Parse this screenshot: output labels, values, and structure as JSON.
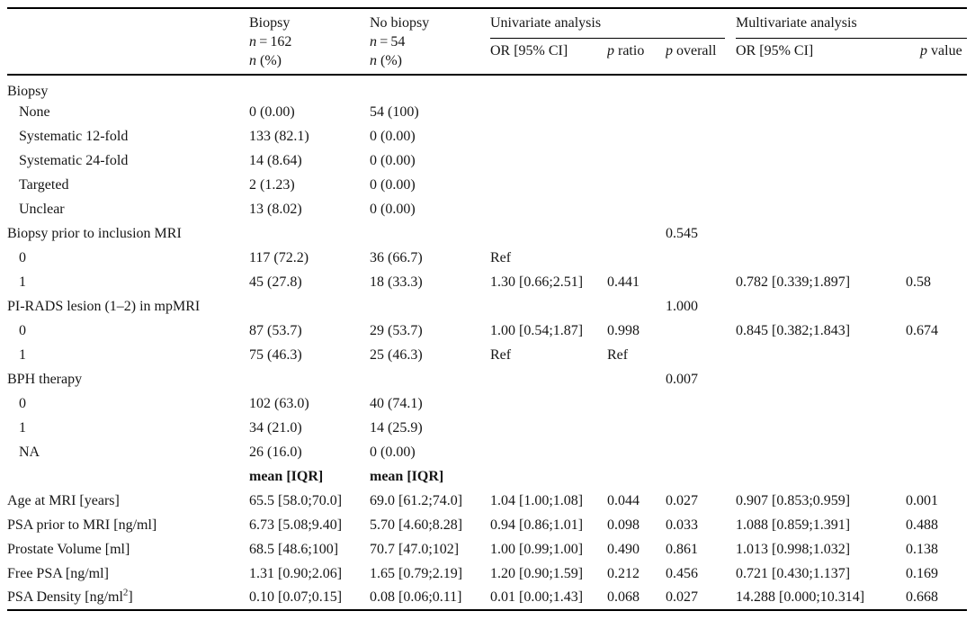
{
  "header": {
    "biopsy": {
      "title": "Biopsy",
      "n_sym": "n",
      "n_rest": " = 162",
      "unit_sym": "n",
      "unit_rest": " (%)"
    },
    "no_biopsy": {
      "title": "No biopsy",
      "n_sym": "n",
      "n_rest": " = 54",
      "unit_sym": "n",
      "unit_rest": " (%)"
    },
    "univariate_group": "Univariate analysis",
    "multivariate_group": "Multivariate analysis",
    "sub": {
      "or_univariate": "OR [95% CI]",
      "p_ratio": {
        "sym": "p",
        "rest": " ratio"
      },
      "p_overall": {
        "sym": "p",
        "rest": " overall"
      },
      "or_multivariate": "OR [95% CI]",
      "p_value": {
        "sym": "p",
        "rest": " value"
      }
    }
  },
  "columns": [
    "label",
    "biopsy",
    "no_biopsy",
    "or_univariate",
    "p_ratio",
    "p_overall",
    "or_multivariate",
    "p_value"
  ],
  "rows": [
    {
      "type": "section",
      "label": "Biopsy",
      "cells": [
        "",
        "",
        "",
        "",
        "",
        "",
        ""
      ]
    },
    {
      "type": "sub",
      "label": "None",
      "cells": [
        "0 (0.00)",
        "54 (100)",
        "",
        "",
        "",
        "",
        ""
      ]
    },
    {
      "type": "sub",
      "label": "Systematic 12-fold",
      "cells": [
        "133 (82.1)",
        "0 (0.00)",
        "",
        "",
        "",
        "",
        ""
      ]
    },
    {
      "type": "sub",
      "label": "Systematic 24-fold",
      "cells": [
        "14 (8.64)",
        "0 (0.00)",
        "",
        "",
        "",
        "",
        ""
      ]
    },
    {
      "type": "sub",
      "label": "Targeted",
      "cells": [
        "2 (1.23)",
        "0 (0.00)",
        "",
        "",
        "",
        "",
        ""
      ]
    },
    {
      "type": "sub",
      "label": "Unclear",
      "cells": [
        "13 (8.02)",
        "0 (0.00)",
        "",
        "",
        "",
        "",
        ""
      ]
    },
    {
      "type": "section",
      "label": "Biopsy prior to inclusion MRI",
      "cells": [
        "",
        "",
        "",
        "",
        "0.545",
        "",
        ""
      ]
    },
    {
      "type": "sub",
      "label": "0",
      "cells": [
        "117 (72.2)",
        "36 (66.7)",
        "Ref",
        "",
        "",
        "",
        ""
      ]
    },
    {
      "type": "sub",
      "label": "1",
      "cells": [
        "45 (27.8)",
        "18 (33.3)",
        "1.30 [0.66;2.51]",
        "0.441",
        "",
        "0.782 [0.339;1.897]",
        "0.58"
      ]
    },
    {
      "type": "section",
      "label": "PI-RADS lesion (1–2) in mpMRI",
      "cells": [
        "",
        "",
        "",
        "",
        "1.000",
        "",
        ""
      ]
    },
    {
      "type": "sub",
      "label": "0",
      "cells": [
        "87 (53.7)",
        "29 (53.7)",
        "1.00 [0.54;1.87]",
        "0.998",
        "",
        "0.845 [0.382;1.843]",
        "0.674"
      ]
    },
    {
      "type": "sub",
      "label": "1",
      "cells": [
        "75 (46.3)",
        "25 (46.3)",
        "Ref",
        "Ref",
        "",
        "",
        ""
      ]
    },
    {
      "type": "section",
      "label": "BPH therapy",
      "cells": [
        "",
        "",
        "",
        "",
        "0.007",
        "",
        ""
      ]
    },
    {
      "type": "sub",
      "label": "0",
      "cells": [
        "102 (63.0)",
        "40 (74.1)",
        "",
        "",
        "",
        "",
        ""
      ]
    },
    {
      "type": "sub",
      "label": "1",
      "cells": [
        "34 (21.0)",
        "14 (25.9)",
        "",
        "",
        "",
        "",
        ""
      ]
    },
    {
      "type": "sub",
      "label": "NA",
      "cells": [
        "26 (16.0)",
        "0 (0.00)",
        "",
        "",
        "",
        "",
        ""
      ]
    },
    {
      "type": "meanrow",
      "label": "",
      "cells": [
        "mean [IQR]",
        "mean [IQR]",
        "",
        "",
        "",
        "",
        ""
      ]
    },
    {
      "type": "measure",
      "label": "Age at MRI [years]",
      "cells": [
        "65.5 [58.0;70.0]",
        "69.0 [61.2;74.0]",
        "1.04 [1.00;1.08]",
        "0.044",
        "0.027",
        "0.907 [0.853;0.959]",
        "0.001"
      ]
    },
    {
      "type": "measure",
      "label": "PSA prior to MRI [ng/ml]",
      "cells": [
        "6.73 [5.08;9.40]",
        "5.70 [4.60;8.28]",
        "0.94 [0.86;1.01]",
        "0.098",
        "0.033",
        "1.088 [0.859;1.391]",
        "0.488"
      ]
    },
    {
      "type": "measure",
      "label": "Prostate Volume [ml]",
      "cells": [
        "68.5 [48.6;100]",
        "70.7 [47.0;102]",
        "1.00 [0.99;1.00]",
        "0.490",
        "0.861",
        "1.013 [0.998;1.032]",
        "0.138"
      ]
    },
    {
      "type": "measure",
      "label": "Free PSA [ng/ml]",
      "cells": [
        "1.31 [0.90;2.06]",
        "1.65 [0.79;2.19]",
        "1.20 [0.90;1.59]",
        "0.212",
        "0.456",
        "0.721 [0.430;1.137]",
        "0.169"
      ]
    },
    {
      "type": "measure",
      "label": "PSA Density [ng/ml2]",
      "label_parts": {
        "pre": "PSA Density [ng/ml",
        "sup": "2",
        "post": "]"
      },
      "cells": [
        "0.10 [0.07;0.15]",
        "0.08 [0.06;0.11]",
        "0.01 [0.00;1.43]",
        "0.068",
        "0.027",
        "14.288 [0.000;10.314]",
        "0.668"
      ]
    }
  ]
}
